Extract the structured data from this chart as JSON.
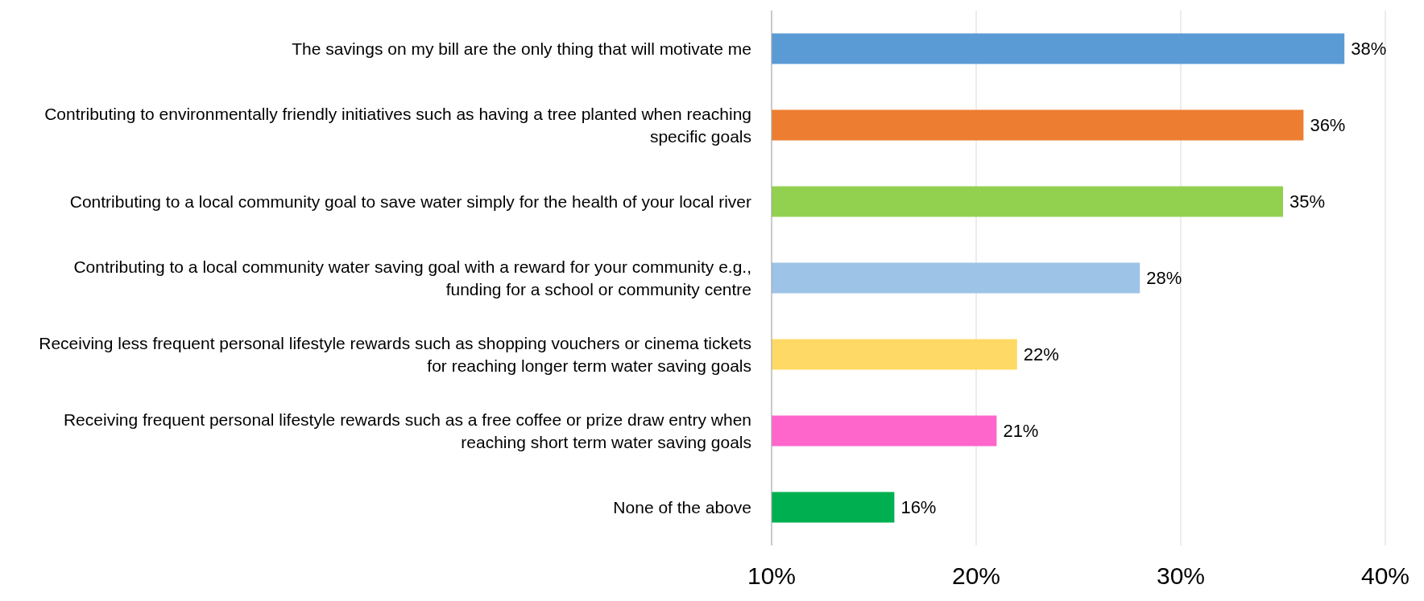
{
  "chart_data": {
    "type": "bar",
    "orientation": "horizontal",
    "categories": [
      "The savings on my bill are the only thing that will motivate me",
      "Contributing to environmentally friendly initiatives such as having a tree planted when reaching specific goals",
      "Contributing to a local community goal to save water simply for the health of your local river",
      "Contributing to a local community water saving goal with a reward for your community e.g., funding for a school or community centre",
      "Receiving less frequent personal lifestyle rewards such as shopping vouchers or cinema tickets for reaching longer term water saving goals",
      "Receiving frequent personal lifestyle rewards such as a free coffee or prize draw entry when reaching short term water saving goals",
      "None of the above"
    ],
    "values": [
      38,
      36,
      35,
      28,
      22,
      21,
      16
    ],
    "colors": [
      "#5b9bd5",
      "#ed7d31",
      "#92d050",
      "#9dc3e6",
      "#ffd966",
      "#ff66cc",
      "#00b050"
    ],
    "value_labels": [
      "38%",
      "36%",
      "35%",
      "28%",
      "22%",
      "21%",
      "16%"
    ],
    "xlim": [
      10,
      40
    ],
    "xticks": [
      {
        "value": 10,
        "label": "10%"
      },
      {
        "value": 20,
        "label": "20%"
      },
      {
        "value": 30,
        "label": "30%"
      },
      {
        "value": 40,
        "label": "40%"
      }
    ],
    "grid": "x"
  }
}
